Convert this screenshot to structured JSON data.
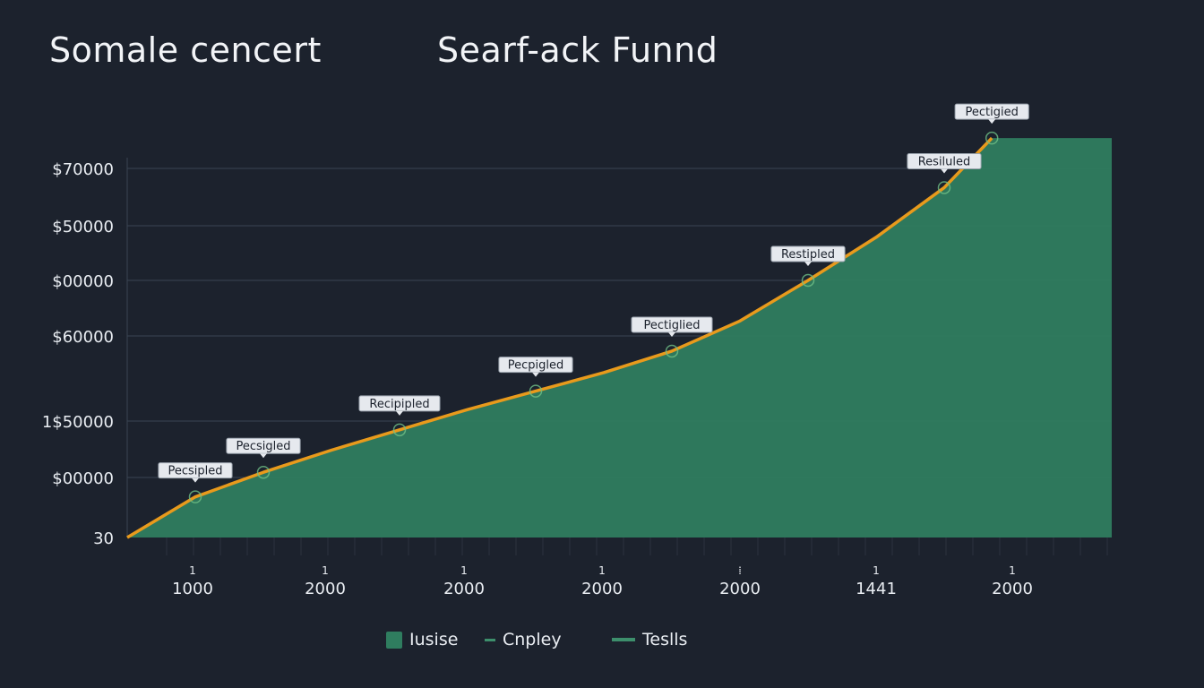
{
  "titles": {
    "left": "Somale cencert",
    "right": "Searf-ack Funnd"
  },
  "colors": {
    "background": "#1c222d",
    "area": "#2f7d5f",
    "line": "#e89a1c",
    "grid": "#3a4452",
    "marker": "#6fbf86"
  },
  "legend": [
    {
      "label": "Iusise",
      "swatch": "box"
    },
    {
      "label": "Cnpley",
      "swatch": "dash"
    },
    {
      "label": "Teslls",
      "swatch": "line"
    }
  ],
  "chart_data": {
    "type": "area",
    "grid": true,
    "y_tick_labels": [
      "30",
      "$00000",
      "1$50000",
      "$60000",
      "$00000",
      "$50000",
      "$70000"
    ],
    "x_tick_labels": [
      "1000",
      "2000",
      "2000",
      "2000",
      "2000",
      "1441",
      "2000"
    ],
    "x_tick_marks": [
      "1",
      "1",
      "1",
      "1",
      "⁞",
      "1",
      "1"
    ],
    "y_range": [
      0,
      6
    ],
    "series": [
      {
        "x": [
          0,
          0.5,
          1.0,
          1.5,
          2.0,
          2.5,
          3.0,
          3.5,
          4.0,
          4.5,
          5.0,
          5.5,
          6.0,
          6.35
        ],
        "y": [
          0.0,
          0.66,
          1.06,
          1.42,
          1.75,
          2.08,
          2.38,
          2.68,
          3.03,
          3.52,
          4.18,
          4.88,
          5.6,
          6.03
        ]
      }
    ],
    "annotations": [
      {
        "x": 0.5,
        "y": 0.66,
        "label": "Pecsipled"
      },
      {
        "x": 1.0,
        "y": 1.06,
        "label": "Pecsigled"
      },
      {
        "x": 2.0,
        "y": 1.75,
        "label": "Recipipled"
      },
      {
        "x": 3.0,
        "y": 2.38,
        "label": "Pecpigled"
      },
      {
        "x": 4.0,
        "y": 3.03,
        "label": "Pectiglied"
      },
      {
        "x": 5.0,
        "y": 4.18,
        "label": "Restipled"
      },
      {
        "x": 6.0,
        "y": 5.6,
        "label": "Resiluled"
      },
      {
        "x": 6.35,
        "y": 6.03,
        "label": "Pectigied"
      }
    ]
  }
}
